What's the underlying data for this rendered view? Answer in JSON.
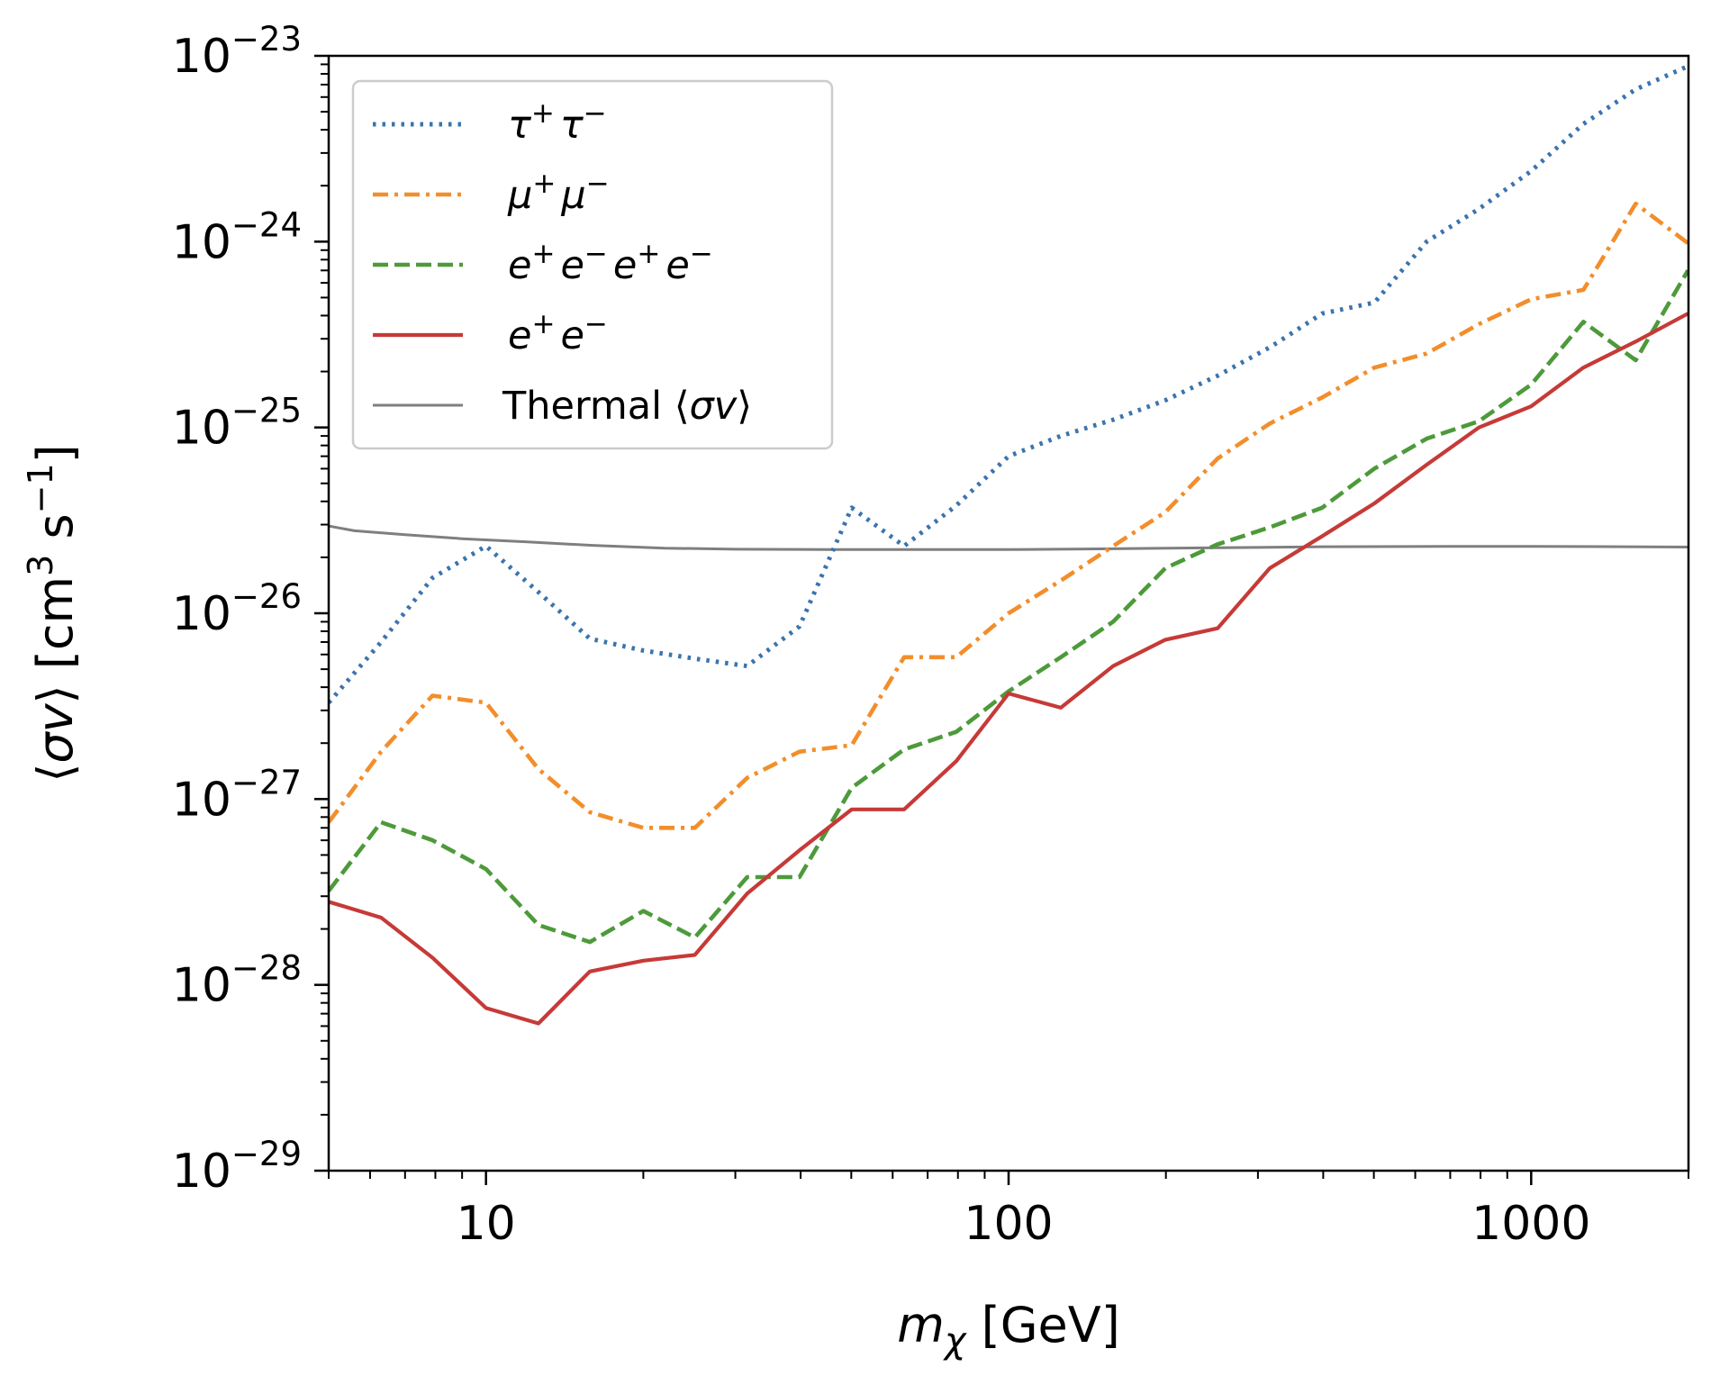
{
  "chart_data": {
    "type": "line",
    "xscale": "log",
    "yscale": "log",
    "xlim": [
      5,
      2000
    ],
    "ylim": [
      1e-29,
      1e-23
    ],
    "xlabel": "m_χ [GeV]",
    "ylabel": "⟨σv⟩ [cm³ s⁻¹]",
    "x_ticks": [
      {
        "value": 10,
        "label": "10"
      },
      {
        "value": 100,
        "label": "100"
      },
      {
        "value": 1000,
        "label": "1000"
      }
    ],
    "y_ticks": [
      {
        "value": 1e-23,
        "mantissa": "10",
        "exponent": "−23"
      },
      {
        "value": 1e-24,
        "mantissa": "10",
        "exponent": "−24"
      },
      {
        "value": 1e-25,
        "mantissa": "10",
        "exponent": "−25"
      },
      {
        "value": 1e-26,
        "mantissa": "10",
        "exponent": "−26"
      },
      {
        "value": 1e-27,
        "mantissa": "10",
        "exponent": "−27"
      },
      {
        "value": 1e-28,
        "mantissa": "10",
        "exponent": "−28"
      },
      {
        "value": 1e-29,
        "mantissa": "10",
        "exponent": "−29"
      }
    ],
    "grid": false,
    "legend_position": "top-left",
    "series": [
      {
        "name": "τ⁺τ⁻",
        "color": "#3b74ad",
        "dash": "dotted",
        "x": [
          5,
          6.3,
          7.9,
          10,
          12.6,
          15.8,
          20,
          25.1,
          31.6,
          39.8,
          50.1,
          63.1,
          79.4,
          100,
          125.9,
          158.5,
          199.5,
          251.2,
          316.2,
          398.1,
          501.2,
          631,
          794.3,
          1000,
          1258.9,
          1584.9,
          1995.3
        ],
        "y": [
          3.3e-27,
          7e-27,
          1.55e-26,
          2.3e-26,
          1.3e-26,
          7.3e-27,
          6.3e-27,
          5.7e-27,
          5.2e-27,
          8.5e-27,
          3.7e-26,
          2.3e-26,
          3.8e-26,
          7e-26,
          9e-26,
          1.1e-25,
          1.4e-25,
          1.9e-25,
          2.7e-25,
          4.1e-25,
          4.7e-25,
          1e-24,
          1.5e-24,
          2.4e-24,
          4.3e-24,
          6.6e-24,
          8.8e-24
        ]
      },
      {
        "name": "μ⁺μ⁻",
        "color": "#f28e2b",
        "dash": "dashdot",
        "x": [
          5,
          6.3,
          7.9,
          10,
          12.6,
          15.8,
          20,
          25.1,
          31.6,
          39.8,
          50.1,
          63.1,
          79.4,
          100,
          125.9,
          158.5,
          199.5,
          251.2,
          316.2,
          398.1,
          501.2,
          631,
          794.3,
          1000,
          1258.9,
          1584.9,
          1995.3
        ],
        "y": [
          7.5e-28,
          1.8e-27,
          3.6e-27,
          3.3e-27,
          1.45e-27,
          8.5e-28,
          7e-28,
          7e-28,
          1.3e-27,
          1.8e-27,
          1.95e-27,
          5.8e-27,
          5.8e-27,
          1e-26,
          1.5e-26,
          2.3e-26,
          3.5e-26,
          6.8e-26,
          1.05e-25,
          1.45e-25,
          2.1e-25,
          2.5e-25,
          3.6e-25,
          4.9e-25,
          5.5e-25,
          1.6e-24,
          9.8e-25
        ]
      },
      {
        "name": "e⁺e⁻e⁺e⁻",
        "color": "#4d9a3a",
        "dash": "dashed",
        "x": [
          5,
          6.3,
          7.9,
          10,
          12.6,
          15.8,
          20,
          25.1,
          31.6,
          39.8,
          50.1,
          63.1,
          79.4,
          100,
          125.9,
          158.5,
          199.5,
          251.2,
          316.2,
          398.1,
          501.2,
          631,
          794.3,
          1000,
          1258.9,
          1584.9,
          1995.3
        ],
        "y": [
          3.2e-28,
          7.5e-28,
          6e-28,
          4.2e-28,
          2.1e-28,
          1.7e-28,
          2.5e-28,
          1.8e-28,
          3.8e-28,
          3.8e-28,
          1.15e-27,
          1.85e-27,
          2.3e-27,
          3.8e-27,
          5.8e-27,
          9e-27,
          1.75e-26,
          2.35e-26,
          2.9e-26,
          3.7e-26,
          6e-26,
          8.7e-26,
          1.08e-25,
          1.7e-25,
          3.7e-25,
          2.3e-25,
          7e-25
        ]
      },
      {
        "name": "e⁺e⁻",
        "color": "#c63a37",
        "dash": "solid",
        "x": [
          5,
          6.3,
          7.9,
          10,
          12.6,
          15.8,
          20,
          25.1,
          31.6,
          39.8,
          50.1,
          63.1,
          79.4,
          100,
          125.9,
          158.5,
          199.5,
          251.2,
          316.2,
          398.1,
          501.2,
          631,
          794.3,
          1000,
          1258.9,
          1584.9,
          1995.3
        ],
        "y": [
          2.8e-28,
          2.3e-28,
          1.4e-28,
          7.5e-29,
          6.2e-29,
          1.18e-28,
          1.35e-28,
          1.45e-28,
          3.1e-28,
          5.3e-28,
          8.8e-28,
          8.8e-28,
          1.6e-27,
          3.7e-27,
          3.1e-27,
          5.2e-27,
          7.2e-27,
          8.3e-27,
          1.75e-26,
          2.6e-26,
          3.9e-26,
          6.3e-26,
          1e-25,
          1.3e-25,
          2.1e-25,
          2.9e-25,
          4.1e-25
        ]
      },
      {
        "name": "Thermal ⟨σv⟩",
        "color": "#7f7f7f",
        "dash": "solid",
        "x": [
          5,
          5.6,
          7,
          9,
          12,
          16,
          22,
          30,
          45,
          70,
          100,
          150,
          250,
          400,
          700,
          1000,
          1500,
          2000
        ],
        "y": [
          2.95e-26,
          2.78e-26,
          2.65e-26,
          2.52e-26,
          2.42e-26,
          2.32e-26,
          2.24e-26,
          2.21e-26,
          2.2e-26,
          2.2e-26,
          2.2e-26,
          2.22e-26,
          2.25e-26,
          2.28e-26,
          2.29e-26,
          2.29e-26,
          2.28e-26,
          2.27e-26
        ]
      }
    ],
    "legend": {
      "entries": [
        {
          "base": "τ",
          "sup": "+",
          "base2": "τ",
          "sup2": "−"
        },
        {
          "base": "μ",
          "sup": "+",
          "base2": "μ",
          "sup2": "−"
        },
        {
          "base": "e",
          "sup": "+",
          "base2": "e",
          "sup2": "−",
          "base3": "e",
          "sup3": "+",
          "base4": "e",
          "sup4": "−"
        },
        {
          "base": "e",
          "sup": "+",
          "base2": "e",
          "sup2": "−"
        },
        {
          "text": "Thermal ⟨",
          "sigma": "σv",
          "text2": "⟩"
        }
      ]
    },
    "axis_text": {
      "x_main": "m",
      "x_sub": "χ",
      "x_unit": " [GeV]",
      "y_open": "⟨",
      "y_sym": "σv",
      "y_close": "⟩ [cm",
      "y_sup3": "3",
      "y_mid": " s",
      "y_supm1": "−1",
      "y_end": "]"
    }
  }
}
